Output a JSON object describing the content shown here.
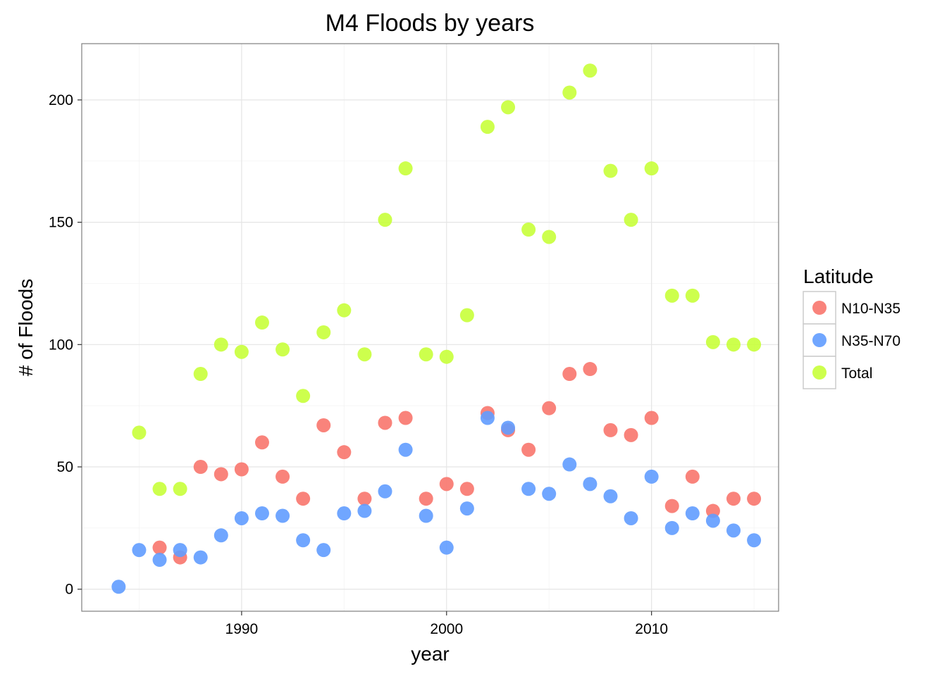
{
  "chart_data": {
    "type": "scatter",
    "title": "M4 Floods by years",
    "xlabel": "year",
    "ylabel": "# of Floods",
    "xlim": [
      1982.2,
      2016.2
    ],
    "ylim": [
      -9,
      223
    ],
    "x_ticks": [
      1990,
      2000,
      2010
    ],
    "x_tick_labels": [
      "1990",
      "2000",
      "2010"
    ],
    "y_ticks": [
      0,
      50,
      100,
      150,
      200
    ],
    "y_tick_labels": [
      "0",
      "50",
      "100",
      "150",
      "200"
    ],
    "grid": true,
    "legend": {
      "title": "Latitude",
      "position": "right"
    },
    "series": [
      {
        "name": "N10-N35",
        "color": "#F8766D",
        "points": [
          [
            1986,
            17
          ],
          [
            1987,
            13
          ],
          [
            1988,
            50
          ],
          [
            1989,
            47
          ],
          [
            1990,
            49
          ],
          [
            1991,
            60
          ],
          [
            1992,
            46
          ],
          [
            1993,
            37
          ],
          [
            1994,
            67
          ],
          [
            1995,
            56
          ],
          [
            1996,
            37
          ],
          [
            1997,
            68
          ],
          [
            1998,
            70
          ],
          [
            1999,
            37
          ],
          [
            2000,
            43
          ],
          [
            2001,
            41
          ],
          [
            2002,
            72
          ],
          [
            2003,
            65
          ],
          [
            2004,
            57
          ],
          [
            2005,
            74
          ],
          [
            2006,
            88
          ],
          [
            2007,
            90
          ],
          [
            2008,
            65
          ],
          [
            2009,
            63
          ],
          [
            2010,
            70
          ],
          [
            2011,
            34
          ],
          [
            2012,
            46
          ],
          [
            2013,
            32
          ],
          [
            2014,
            37
          ],
          [
            2015,
            37
          ]
        ]
      },
      {
        "name": "N35-N70",
        "color": "#619CFF",
        "points": [
          [
            1984,
            1
          ],
          [
            1985,
            16
          ],
          [
            1986,
            12
          ],
          [
            1987,
            16
          ],
          [
            1988,
            13
          ],
          [
            1989,
            22
          ],
          [
            1990,
            29
          ],
          [
            1991,
            31
          ],
          [
            1992,
            30
          ],
          [
            1993,
            20
          ],
          [
            1994,
            16
          ],
          [
            1995,
            31
          ],
          [
            1996,
            32
          ],
          [
            1997,
            40
          ],
          [
            1998,
            57
          ],
          [
            1999,
            30
          ],
          [
            2000,
            17
          ],
          [
            2001,
            33
          ],
          [
            2002,
            70
          ],
          [
            2003,
            66
          ],
          [
            2004,
            41
          ],
          [
            2005,
            39
          ],
          [
            2006,
            51
          ],
          [
            2007,
            43
          ],
          [
            2008,
            38
          ],
          [
            2009,
            29
          ],
          [
            2010,
            46
          ],
          [
            2011,
            25
          ],
          [
            2012,
            31
          ],
          [
            2013,
            28
          ],
          [
            2014,
            24
          ],
          [
            2015,
            20
          ]
        ]
      },
      {
        "name": "Total",
        "color": "#C8FF3A",
        "points": [
          [
            1985,
            64
          ],
          [
            1986,
            41
          ],
          [
            1987,
            41
          ],
          [
            1988,
            88
          ],
          [
            1989,
            100
          ],
          [
            1990,
            97
          ],
          [
            1991,
            109
          ],
          [
            1992,
            98
          ],
          [
            1993,
            79
          ],
          [
            1994,
            105
          ],
          [
            1995,
            114
          ],
          [
            1996,
            96
          ],
          [
            1997,
            151
          ],
          [
            1998,
            172
          ],
          [
            1999,
            96
          ],
          [
            2000,
            95
          ],
          [
            2001,
            112
          ],
          [
            2002,
            189
          ],
          [
            2003,
            197
          ],
          [
            2004,
            147
          ],
          [
            2005,
            144
          ],
          [
            2006,
            203
          ],
          [
            2007,
            212
          ],
          [
            2008,
            171
          ],
          [
            2009,
            151
          ],
          [
            2010,
            172
          ],
          [
            2011,
            120
          ],
          [
            2012,
            120
          ],
          [
            2013,
            101
          ],
          [
            2014,
            100
          ],
          [
            2015,
            100
          ]
        ]
      }
    ]
  }
}
